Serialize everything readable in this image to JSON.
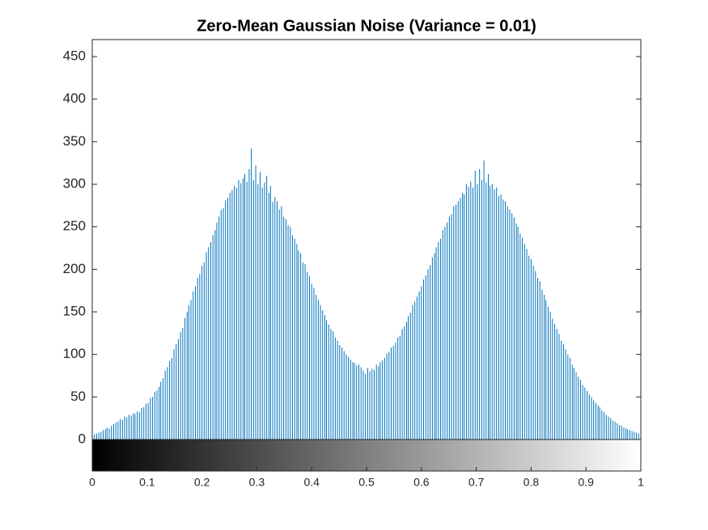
{
  "chart_data": {
    "type": "stem",
    "title": "Zero-Mean Gaussian Noise (Variance = 0.01)",
    "color": "#0072bd",
    "xlim": [
      0,
      1
    ],
    "ylim": [
      0,
      470
    ],
    "xticks": [
      0,
      0.1,
      0.2,
      0.3,
      0.4,
      0.5,
      0.6,
      0.7,
      0.8,
      0.9,
      1
    ],
    "yticks": [
      0,
      50,
      100,
      150,
      200,
      250,
      300,
      350,
      400,
      450
    ],
    "grid": false,
    "x": [
      0,
      0.004,
      0.008,
      0.012,
      0.016,
      0.02,
      0.024,
      0.027,
      0.031,
      0.035,
      0.039,
      0.043,
      0.047,
      0.051,
      0.055,
      0.059,
      0.063,
      0.067,
      0.071,
      0.075,
      0.078,
      0.082,
      0.086,
      0.09,
      0.094,
      0.098,
      0.102,
      0.106,
      0.11,
      0.114,
      0.118,
      0.122,
      0.125,
      0.129,
      0.133,
      0.137,
      0.141,
      0.145,
      0.149,
      0.153,
      0.157,
      0.161,
      0.165,
      0.169,
      0.173,
      0.176,
      0.18,
      0.184,
      0.188,
      0.192,
      0.196,
      0.2,
      0.204,
      0.208,
      0.212,
      0.216,
      0.22,
      0.224,
      0.227,
      0.231,
      0.235,
      0.239,
      0.243,
      0.247,
      0.251,
      0.255,
      0.259,
      0.263,
      0.267,
      0.271,
      0.275,
      0.278,
      0.282,
      0.286,
      0.29,
      0.294,
      0.298,
      0.302,
      0.306,
      0.31,
      0.314,
      0.318,
      0.322,
      0.325,
      0.329,
      0.333,
      0.337,
      0.341,
      0.345,
      0.349,
      0.353,
      0.357,
      0.361,
      0.365,
      0.369,
      0.373,
      0.376,
      0.38,
      0.384,
      0.388,
      0.392,
      0.396,
      0.4,
      0.404,
      0.408,
      0.412,
      0.416,
      0.42,
      0.424,
      0.427,
      0.431,
      0.435,
      0.439,
      0.443,
      0.447,
      0.451,
      0.455,
      0.459,
      0.463,
      0.467,
      0.471,
      0.475,
      0.478,
      0.482,
      0.486,
      0.49,
      0.494,
      0.498,
      0.502,
      0.506,
      0.51,
      0.514,
      0.518,
      0.522,
      0.525,
      0.529,
      0.533,
      0.537,
      0.541,
      0.545,
      0.549,
      0.553,
      0.557,
      0.561,
      0.565,
      0.569,
      0.573,
      0.576,
      0.58,
      0.584,
      0.588,
      0.592,
      0.596,
      0.6,
      0.604,
      0.608,
      0.612,
      0.616,
      0.62,
      0.624,
      0.627,
      0.631,
      0.635,
      0.639,
      0.643,
      0.647,
      0.651,
      0.655,
      0.659,
      0.663,
      0.667,
      0.671,
      0.675,
      0.678,
      0.682,
      0.686,
      0.69,
      0.694,
      0.698,
      0.702,
      0.706,
      0.71,
      0.714,
      0.718,
      0.722,
      0.725,
      0.729,
      0.733,
      0.737,
      0.741,
      0.745,
      0.749,
      0.753,
      0.757,
      0.761,
      0.765,
      0.769,
      0.773,
      0.776,
      0.78,
      0.784,
      0.788,
      0.792,
      0.796,
      0.8,
      0.804,
      0.808,
      0.812,
      0.816,
      0.82,
      0.824,
      0.827,
      0.831,
      0.835,
      0.839,
      0.843,
      0.847,
      0.851,
      0.855,
      0.859,
      0.863,
      0.867,
      0.871,
      0.875,
      0.878,
      0.882,
      0.886,
      0.89,
      0.894,
      0.898,
      0.902,
      0.906,
      0.91,
      0.914,
      0.918,
      0.922,
      0.925,
      0.929,
      0.933,
      0.937,
      0.941,
      0.945,
      0.949,
      0.953,
      0.957,
      0.961,
      0.965,
      0.969,
      0.973,
      0.976,
      0.98,
      0.984,
      0.988,
      0.992,
      0.996,
      1
    ],
    "values": [
      16,
      6,
      7,
      8,
      9,
      11,
      12,
      14,
      13,
      16,
      18,
      20,
      21,
      24,
      23,
      27,
      26,
      29,
      28,
      31,
      30,
      33,
      32,
      37,
      38,
      42,
      43,
      49,
      50,
      56,
      58,
      62,
      68,
      72,
      81,
      85,
      92,
      96,
      106,
      112,
      118,
      126,
      131,
      143,
      150,
      158,
      164,
      174,
      180,
      190,
      195,
      204,
      208,
      220,
      226,
      232,
      240,
      246,
      255,
      262,
      270,
      272,
      281,
      284,
      290,
      293,
      298,
      296,
      305,
      301,
      307,
      312,
      303,
      318,
      342,
      305,
      322,
      300,
      314,
      296,
      302,
      310,
      290,
      298,
      279,
      285,
      280,
      270,
      274,
      262,
      259,
      252,
      250,
      240,
      236,
      230,
      222,
      219,
      208,
      206,
      197,
      192,
      183,
      178,
      170,
      164,
      158,
      152,
      146,
      140,
      135,
      130,
      127,
      120,
      116,
      111,
      108,
      104,
      100,
      97,
      94,
      91,
      90,
      87,
      88,
      85,
      81,
      77,
      84,
      80,
      83,
      82,
      88,
      86,
      91,
      93,
      96,
      101,
      103,
      108,
      110,
      114,
      120,
      122,
      130,
      133,
      138,
      145,
      149,
      158,
      162,
      168,
      174,
      180,
      188,
      193,
      200,
      205,
      214,
      219,
      226,
      232,
      236,
      246,
      250,
      255,
      262,
      265,
      274,
      276,
      280,
      284,
      290,
      288,
      300,
      297,
      303,
      296,
      316,
      300,
      318,
      305,
      328,
      302,
      312,
      298,
      300,
      294,
      296,
      286,
      288,
      282,
      280,
      274,
      270,
      266,
      261,
      254,
      250,
      242,
      237,
      230,
      224,
      216,
      212,
      204,
      198,
      190,
      186,
      176,
      170,
      164,
      156,
      150,
      142,
      136,
      130,
      124,
      116,
      112,
      106,
      100,
      96,
      88,
      84,
      79,
      74,
      70,
      64,
      61,
      57,
      53,
      50,
      46,
      43,
      40,
      38,
      34,
      32,
      29,
      27,
      25,
      22,
      21,
      19,
      17,
      16,
      14,
      13,
      12,
      11,
      10,
      9,
      8,
      7,
      36
    ]
  }
}
